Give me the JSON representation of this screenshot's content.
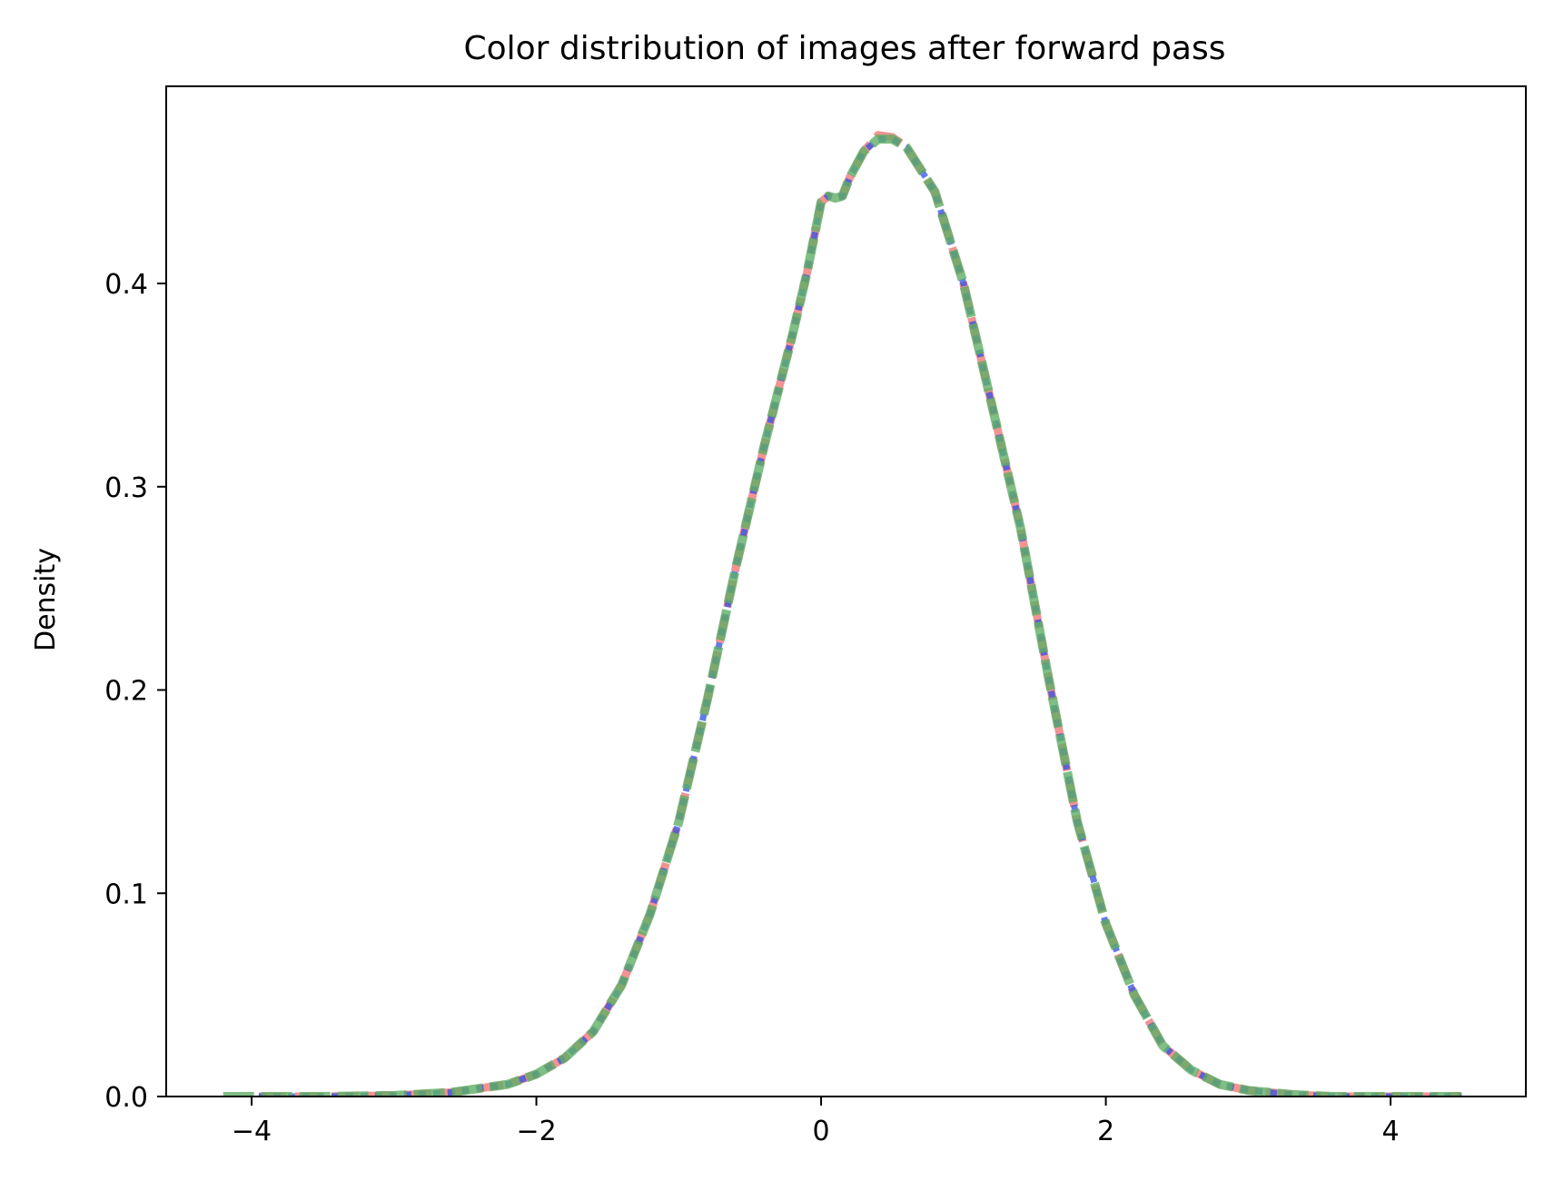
{
  "chart_data": {
    "type": "line",
    "title": "Color distribution of images after forward pass",
    "xlabel": "",
    "ylabel": "Density",
    "xlim": [
      -4.6,
      4.95
    ],
    "ylim": [
      0.0,
      0.497
    ],
    "x_ticks": [
      -4,
      -2,
      0,
      2,
      4
    ],
    "x_tick_labels": [
      "−4",
      "−2",
      "0",
      "2",
      "4"
    ],
    "y_ticks": [
      0.0,
      0.1,
      0.2,
      0.3,
      0.4
    ],
    "y_tick_labels": [
      "0.0",
      "0.1",
      "0.2",
      "0.3",
      "0.4"
    ],
    "grid": false,
    "legend": "none",
    "series": [
      {
        "color": "#f08080",
        "line_style": "dashed",
        "x": [
          -3.95,
          -3.5,
          -3.0,
          -2.6,
          -2.4,
          -2.2,
          -2.0,
          -1.8,
          -1.6,
          -1.4,
          -1.2,
          -1.0,
          -0.8,
          -0.6,
          -0.4,
          -0.2,
          -0.1,
          0.0,
          0.05,
          0.1,
          0.15,
          0.2,
          0.3,
          0.4,
          0.5,
          0.6,
          0.8,
          1.0,
          1.2,
          1.4,
          1.6,
          1.8,
          2.0,
          2.2,
          2.4,
          2.6,
          2.8,
          3.0,
          3.3,
          3.6,
          4.0,
          4.5
        ],
        "y": [
          0.0,
          0.0,
          0.0005,
          0.002,
          0.004,
          0.006,
          0.011,
          0.019,
          0.032,
          0.055,
          0.09,
          0.135,
          0.195,
          0.26,
          0.32,
          0.375,
          0.405,
          0.44,
          0.443,
          0.442,
          0.443,
          0.452,
          0.465,
          0.473,
          0.472,
          0.467,
          0.445,
          0.4,
          0.34,
          0.28,
          0.205,
          0.135,
          0.085,
          0.05,
          0.025,
          0.013,
          0.006,
          0.003,
          0.001,
          0.0,
          0.0,
          0.0
        ]
      },
      {
        "color": "#2d50e0",
        "line_style": "dotted",
        "x": [
          -3.95,
          -3.5,
          -3.0,
          -2.6,
          -2.4,
          -2.2,
          -2.0,
          -1.8,
          -1.6,
          -1.4,
          -1.2,
          -1.0,
          -0.8,
          -0.6,
          -0.4,
          -0.2,
          -0.1,
          0.0,
          0.05,
          0.1,
          0.15,
          0.2,
          0.3,
          0.4,
          0.5,
          0.6,
          0.8,
          1.0,
          1.2,
          1.4,
          1.6,
          1.8,
          2.0,
          2.2,
          2.4,
          2.6,
          2.8,
          3.0,
          3.3,
          3.6,
          4.0,
          4.5
        ],
        "y": [
          0.0,
          0.0,
          0.0005,
          0.002,
          0.004,
          0.006,
          0.011,
          0.019,
          0.032,
          0.055,
          0.09,
          0.135,
          0.195,
          0.26,
          0.32,
          0.375,
          0.405,
          0.44,
          0.443,
          0.442,
          0.443,
          0.452,
          0.465,
          0.471,
          0.471,
          0.467,
          0.445,
          0.4,
          0.34,
          0.28,
          0.205,
          0.135,
          0.085,
          0.05,
          0.025,
          0.013,
          0.006,
          0.003,
          0.001,
          0.0,
          0.0,
          0.0
        ]
      },
      {
        "color": "#5fae65",
        "line_style": "dashed",
        "x": [
          -4.2,
          -3.95,
          -3.5,
          -3.0,
          -2.6,
          -2.4,
          -2.2,
          -2.0,
          -1.8,
          -1.6,
          -1.4,
          -1.2,
          -1.0,
          -0.8,
          -0.6,
          -0.4,
          -0.2,
          -0.1,
          0.0,
          0.05,
          0.1,
          0.15,
          0.2,
          0.3,
          0.4,
          0.5,
          0.6,
          0.8,
          1.0,
          1.2,
          1.4,
          1.6,
          1.8,
          2.0,
          2.2,
          2.4,
          2.6,
          2.8,
          3.0,
          3.3,
          3.6,
          4.0,
          4.5
        ],
        "y": [
          0.0,
          0.0,
          0.0,
          0.0005,
          0.002,
          0.004,
          0.006,
          0.011,
          0.019,
          0.032,
          0.055,
          0.09,
          0.135,
          0.195,
          0.26,
          0.32,
          0.375,
          0.405,
          0.44,
          0.443,
          0.442,
          0.443,
          0.452,
          0.465,
          0.471,
          0.471,
          0.467,
          0.445,
          0.4,
          0.34,
          0.28,
          0.205,
          0.135,
          0.085,
          0.05,
          0.025,
          0.013,
          0.006,
          0.003,
          0.001,
          0.0,
          0.0,
          0.0
        ]
      }
    ]
  }
}
